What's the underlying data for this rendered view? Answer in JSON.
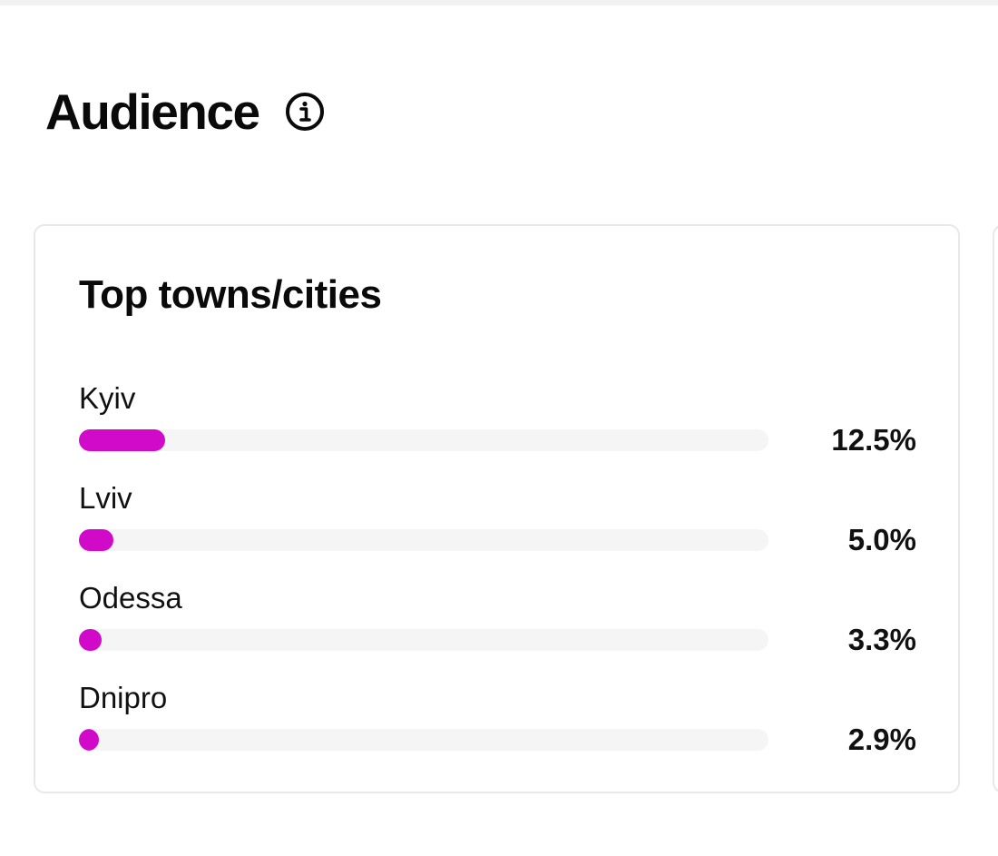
{
  "audience": {
    "title": "Audience",
    "info_icon": "info-circle-icon"
  },
  "top_cities": {
    "title": "Top towns/cities",
    "accent_color": "#d10ac9",
    "track_color": "#f5f5f5",
    "items": [
      {
        "label": "Kyiv",
        "value_text": "12.5%",
        "value": 12.5
      },
      {
        "label": "Lviv",
        "value_text": "5.0%",
        "value": 5.0
      },
      {
        "label": "Odessa",
        "value_text": "3.3%",
        "value": 3.3
      },
      {
        "label": "Dnipro",
        "value_text": "2.9%",
        "value": 2.9
      }
    ]
  }
}
